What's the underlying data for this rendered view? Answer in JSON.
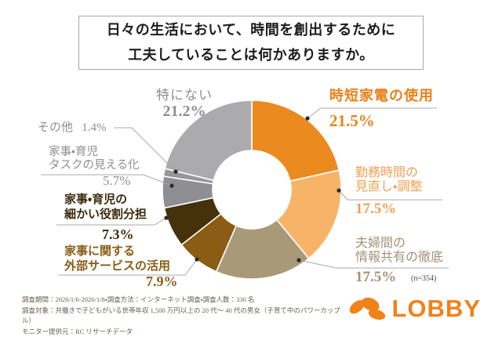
{
  "title": {
    "line1": "日々の生活において、時間を創出するために",
    "line2": "工夫していることは何かありますか。"
  },
  "chart_data": {
    "type": "pie",
    "subtype": "donut",
    "unit": "%",
    "sample_note": "(n=354)",
    "start_angle": "top, clockwise",
    "categories": [
      "時短家電の使用",
      "勤務時間の見直し・調整",
      "夫婦間の情報共有の徹底",
      "家事に関する外部サービスの活用",
      "家事・育児の細かい役割分担",
      "家事・育児タスクの見える化",
      "その他",
      "特にない"
    ],
    "values": [
      21.5,
      17.5,
      17.5,
      7.9,
      7.3,
      5.7,
      1.4,
      21.2
    ],
    "segments": [
      {
        "name": "時短家電の使用",
        "value": 21.5,
        "pct": "21.5%",
        "color": "#eb8a1e",
        "label_color": "#e8821a",
        "name_lines": [
          "時短家電の使用"
        ]
      },
      {
        "name": "勤務時間の見直し・調整",
        "value": 17.5,
        "pct": "17.5%",
        "color": "#f7b469",
        "label_color": "#f0a055",
        "name_lines": [
          "勤務時間の",
          "見直し・調整"
        ]
      },
      {
        "name": "夫婦間の情報共有の徹底",
        "value": 17.5,
        "pct": "17.5%",
        "color": "#a89a79",
        "label_color": "#a39274",
        "name_lines": [
          "夫婦間の",
          "情報共有の徹底"
        ]
      },
      {
        "name": "家事に関する外部サービスの活用",
        "value": 7.9,
        "pct": "7.9%",
        "color": "#8a5c14",
        "label_color": "#8a5c14",
        "name_lines": [
          "家事に関する",
          "外部サービスの活用"
        ]
      },
      {
        "name": "家事・育児の細かい役割分担",
        "value": 7.3,
        "pct": "7.3%",
        "color": "#45310c",
        "label_color": "#3c2b0d",
        "name_lines": [
          "家事・育児の",
          "細かい役割分担"
        ]
      },
      {
        "name": "家事・育児タスクの見える化",
        "value": 5.7,
        "pct": "5.7%",
        "color": "#8f8f93",
        "label_color": "#8e8e8e",
        "name_lines": [
          "家事・育児",
          "タスクの見える化"
        ]
      },
      {
        "name": "その他",
        "value": 1.4,
        "pct": "1.4%",
        "color": "#97979b",
        "label_color": "#8e8e8e",
        "name_lines": [
          "その他"
        ]
      },
      {
        "name": "特にない",
        "value": 21.2,
        "pct": "21.2%",
        "color": "#ababad",
        "label_color": "#8e8e8e",
        "name_lines": [
          "特にない"
        ]
      }
    ]
  },
  "footer": {
    "lines": [
      "調査期間：2026/1/6-2026/1/8・調査方法：インターネット調査・調査人数：330 名",
      "調査対象：共働きで子どもがいる世帯年収 1,500 万円以上の 20 代～ 40 代の男女（子育て中のパワーカップル）",
      "モニター提供元：RC リサーチデータ"
    ]
  },
  "logo": {
    "text": "LOBBY",
    "color": "#f08219"
  }
}
